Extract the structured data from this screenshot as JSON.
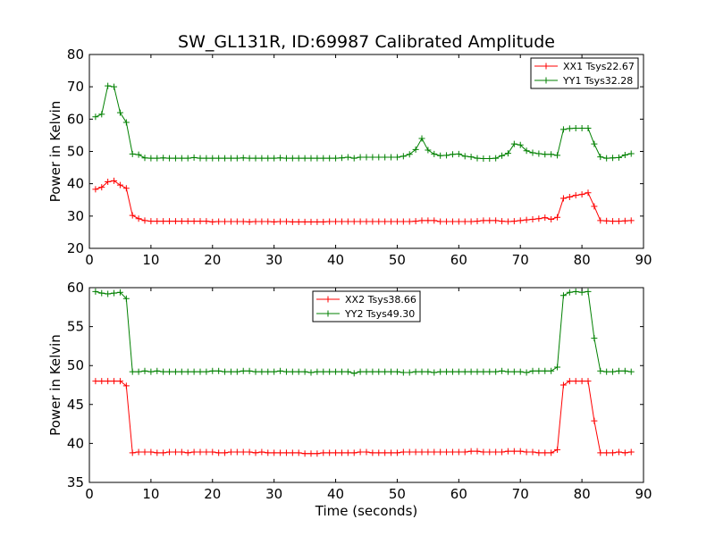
{
  "figure": {
    "title": "SW_GL131R, ID:69987 Calibrated Amplitude"
  },
  "chart_data": [
    {
      "type": "line",
      "title": "SW_GL131R, ID:69987 Calibrated Amplitude",
      "xlabel": "",
      "ylabel": "Power in Kelvin",
      "xlim": [
        0,
        90
      ],
      "ylim": [
        20,
        80
      ],
      "xticks": [
        0,
        10,
        20,
        30,
        40,
        50,
        60,
        70,
        80,
        90
      ],
      "yticks": [
        20,
        30,
        40,
        50,
        60,
        70,
        80
      ],
      "legend_position": "top-right",
      "x": [
        1,
        2,
        3,
        4,
        5,
        6,
        7,
        8,
        9,
        10,
        11,
        12,
        13,
        14,
        15,
        16,
        17,
        18,
        19,
        20,
        21,
        22,
        23,
        24,
        25,
        26,
        27,
        28,
        29,
        30,
        31,
        32,
        33,
        34,
        35,
        36,
        37,
        38,
        39,
        40,
        41,
        42,
        43,
        44,
        45,
        46,
        47,
        48,
        49,
        50,
        51,
        52,
        53,
        54,
        55,
        56,
        57,
        58,
        59,
        60,
        61,
        62,
        63,
        64,
        65,
        66,
        67,
        68,
        69,
        70,
        71,
        72,
        73,
        74,
        75,
        76,
        77,
        78,
        79,
        80,
        81,
        82,
        83,
        84,
        85,
        86,
        87,
        88
      ],
      "series": [
        {
          "name": "XX1 Tsys22.67",
          "color": "#ff0000",
          "values": [
            38.3,
            38.9,
            40.6,
            40.9,
            39.6,
            38.6,
            30.2,
            29.2,
            28.6,
            28.4,
            28.4,
            28.4,
            28.4,
            28.4,
            28.4,
            28.4,
            28.4,
            28.4,
            28.4,
            28.2,
            28.3,
            28.3,
            28.3,
            28.3,
            28.3,
            28.2,
            28.3,
            28.3,
            28.3,
            28.2,
            28.3,
            28.3,
            28.2,
            28.2,
            28.2,
            28.2,
            28.2,
            28.2,
            28.3,
            28.3,
            28.3,
            28.3,
            28.3,
            28.3,
            28.3,
            28.3,
            28.3,
            28.3,
            28.3,
            28.3,
            28.3,
            28.3,
            28.4,
            28.6,
            28.6,
            28.6,
            28.3,
            28.3,
            28.3,
            28.3,
            28.3,
            28.3,
            28.4,
            28.6,
            28.6,
            28.6,
            28.4,
            28.3,
            28.4,
            28.6,
            28.8,
            29.0,
            29.2,
            29.5,
            29.0,
            29.6,
            35.5,
            35.9,
            36.4,
            36.7,
            37.2,
            33.0,
            28.6,
            28.5,
            28.4,
            28.4,
            28.5,
            28.6
          ]
        },
        {
          "name": "YY1 Tsys32.28",
          "color": "#008000",
          "values": [
            60.7,
            61.5,
            70.3,
            70.0,
            62.0,
            59.0,
            49.2,
            49.0,
            48.0,
            47.9,
            47.9,
            48.0,
            47.9,
            47.9,
            47.9,
            47.9,
            48.1,
            47.9,
            47.9,
            47.9,
            47.9,
            47.9,
            47.9,
            47.9,
            48.0,
            47.9,
            47.9,
            47.9,
            47.9,
            47.9,
            48.0,
            47.9,
            47.9,
            47.9,
            47.9,
            47.9,
            47.9,
            47.9,
            47.9,
            47.9,
            48.0,
            48.2,
            47.9,
            48.2,
            48.2,
            48.2,
            48.2,
            48.2,
            48.2,
            48.2,
            48.5,
            49.1,
            50.6,
            54.0,
            50.4,
            49.2,
            48.7,
            48.8,
            49.1,
            49.2,
            48.5,
            48.3,
            47.9,
            47.8,
            47.8,
            47.9,
            48.7,
            49.4,
            52.3,
            52.0,
            50.2,
            49.6,
            49.3,
            49.1,
            49.1,
            48.8,
            56.8,
            57.1,
            57.2,
            57.2,
            57.2,
            52.3,
            48.3,
            47.9,
            48.0,
            48.1,
            48.9,
            49.3
          ]
        }
      ]
    },
    {
      "type": "line",
      "title": "",
      "xlabel": "Time (seconds)",
      "ylabel": "Power in Kelvin",
      "xlim": [
        0,
        90
      ],
      "ylim": [
        35,
        60
      ],
      "xticks": [
        0,
        10,
        20,
        30,
        40,
        50,
        60,
        70,
        80,
        90
      ],
      "yticks": [
        35,
        40,
        45,
        50,
        55,
        60
      ],
      "legend_position": "top-center",
      "x": [
        1,
        2,
        3,
        4,
        5,
        6,
        7,
        8,
        9,
        10,
        11,
        12,
        13,
        14,
        15,
        16,
        17,
        18,
        19,
        20,
        21,
        22,
        23,
        24,
        25,
        26,
        27,
        28,
        29,
        30,
        31,
        32,
        33,
        34,
        35,
        36,
        37,
        38,
        39,
        40,
        41,
        42,
        43,
        44,
        45,
        46,
        47,
        48,
        49,
        50,
        51,
        52,
        53,
        54,
        55,
        56,
        57,
        58,
        59,
        60,
        61,
        62,
        63,
        64,
        65,
        66,
        67,
        68,
        69,
        70,
        71,
        72,
        73,
        74,
        75,
        76,
        77,
        78,
        79,
        80,
        81,
        82,
        83,
        84,
        85,
        86,
        87,
        88
      ],
      "series": [
        {
          "name": "XX2 Tsys38.66",
          "color": "#ff0000",
          "values": [
            48.0,
            48.0,
            48.0,
            48.0,
            48.0,
            47.4,
            38.8,
            38.9,
            38.9,
            38.9,
            38.8,
            38.8,
            38.9,
            38.9,
            38.9,
            38.8,
            38.9,
            38.9,
            38.9,
            38.9,
            38.8,
            38.8,
            38.9,
            38.9,
            38.9,
            38.9,
            38.8,
            38.9,
            38.8,
            38.8,
            38.8,
            38.8,
            38.8,
            38.8,
            38.7,
            38.7,
            38.7,
            38.8,
            38.8,
            38.8,
            38.8,
            38.8,
            38.8,
            38.9,
            38.9,
            38.8,
            38.8,
            38.8,
            38.8,
            38.8,
            38.9,
            38.9,
            38.9,
            38.9,
            38.9,
            38.9,
            38.9,
            38.9,
            38.9,
            38.9,
            38.9,
            39.0,
            39.0,
            38.9,
            38.9,
            38.9,
            38.9,
            39.0,
            39.0,
            39.0,
            38.9,
            38.9,
            38.8,
            38.8,
            38.8,
            39.2,
            47.5,
            48.0,
            48.0,
            48.0,
            48.0,
            42.9,
            38.8,
            38.8,
            38.8,
            38.9,
            38.8,
            38.9
          ]
        },
        {
          "name": "YY2 Tsys49.30",
          "color": "#008000",
          "values": [
            59.5,
            59.3,
            59.2,
            59.3,
            59.4,
            58.6,
            49.2,
            49.2,
            49.3,
            49.2,
            49.3,
            49.2,
            49.2,
            49.2,
            49.2,
            49.2,
            49.2,
            49.2,
            49.2,
            49.3,
            49.3,
            49.2,
            49.2,
            49.2,
            49.3,
            49.3,
            49.2,
            49.2,
            49.2,
            49.2,
            49.3,
            49.2,
            49.2,
            49.2,
            49.2,
            49.1,
            49.2,
            49.2,
            49.2,
            49.2,
            49.2,
            49.2,
            49.0,
            49.2,
            49.2,
            49.2,
            49.2,
            49.2,
            49.2,
            49.2,
            49.1,
            49.1,
            49.2,
            49.2,
            49.2,
            49.1,
            49.2,
            49.2,
            49.2,
            49.2,
            49.2,
            49.2,
            49.2,
            49.2,
            49.2,
            49.2,
            49.3,
            49.2,
            49.2,
            49.2,
            49.1,
            49.3,
            49.3,
            49.3,
            49.3,
            49.8,
            59.0,
            59.4,
            59.5,
            59.4,
            59.5,
            53.5,
            49.3,
            49.2,
            49.2,
            49.3,
            49.3,
            49.2
          ]
        }
      ]
    }
  ]
}
